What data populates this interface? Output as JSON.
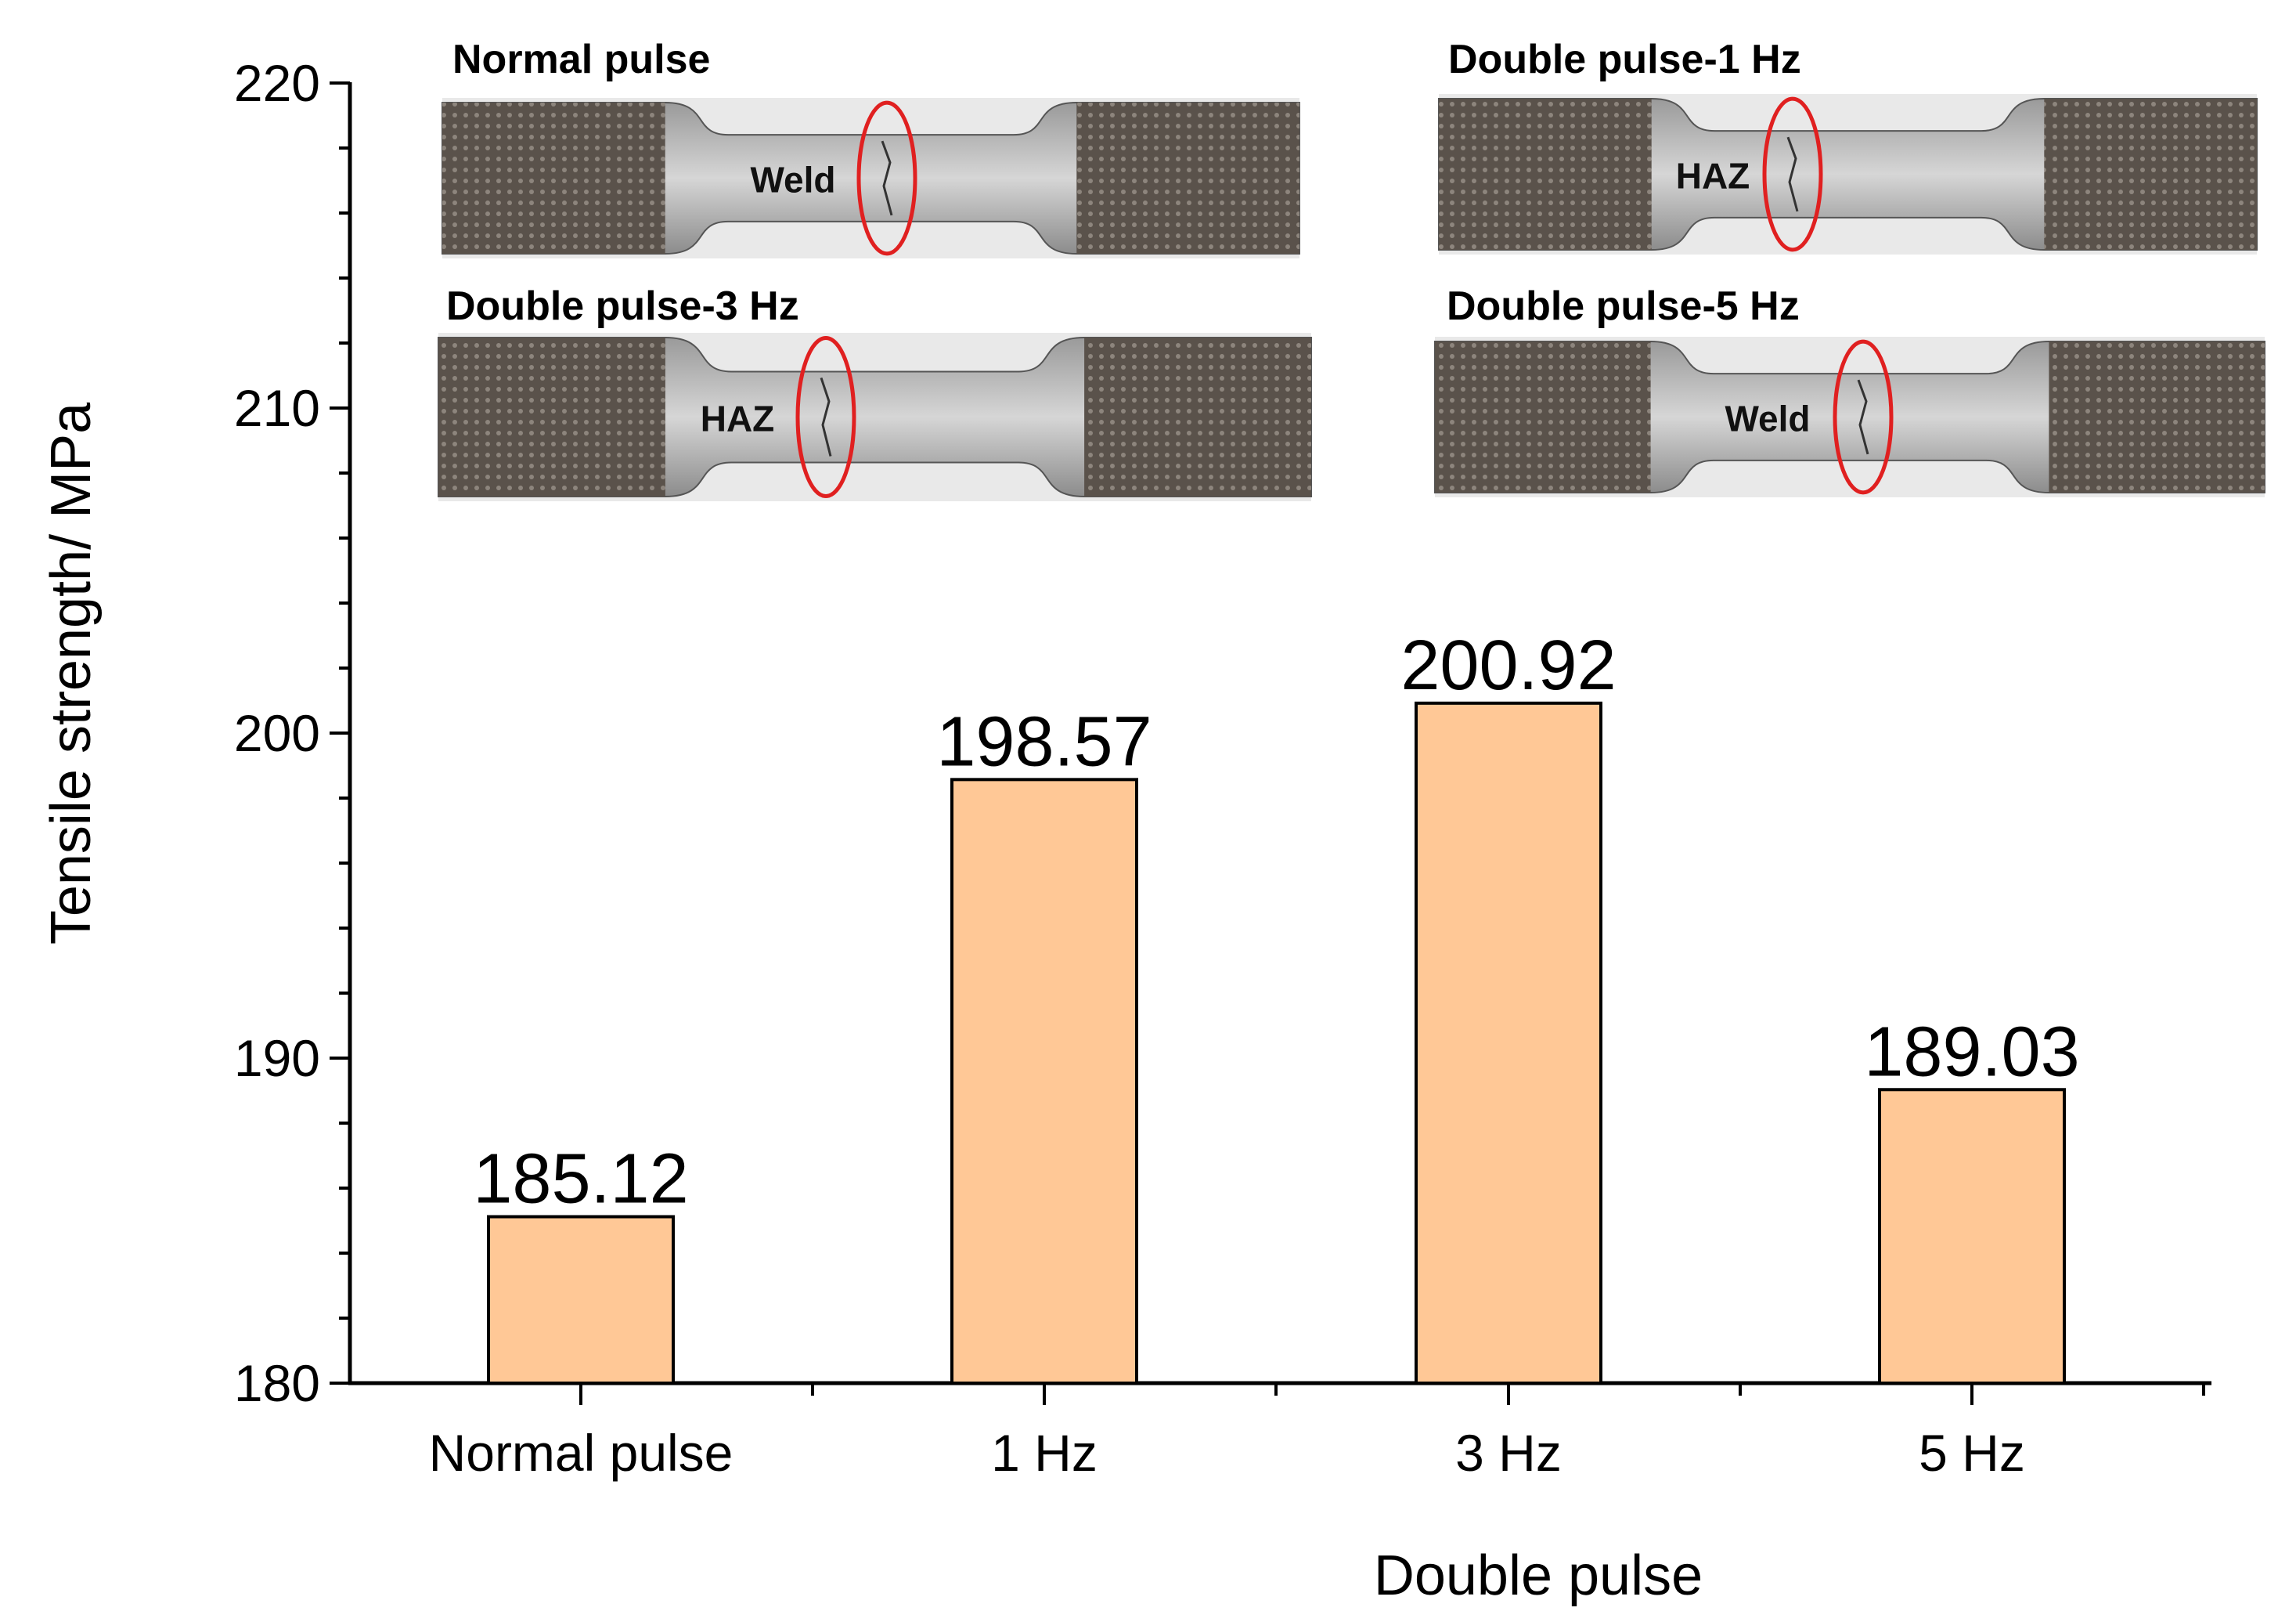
{
  "chart_data": {
    "type": "bar",
    "categories": [
      "Normal pulse",
      "1 Hz",
      "3 Hz",
      "5 Hz"
    ],
    "values": [
      185.12,
      198.57,
      200.92,
      189.03
    ],
    "data_labels": [
      "185.12",
      "198.57",
      "200.92",
      "189.03"
    ],
    "ylabel": "Tensile strength/ MPa",
    "xlabel_group": "Double pulse",
    "ylim": [
      180,
      220
    ],
    "y_ticks": [
      180,
      190,
      200,
      210,
      220
    ],
    "y_minor_step": 2,
    "grid": false,
    "bar_color": "#FFC896",
    "bar_edge_color": "#000000"
  },
  "insets": [
    {
      "title": "Normal pulse",
      "region_label": "Weld"
    },
    {
      "title": "Double pulse-1 Hz",
      "region_label": "HAZ"
    },
    {
      "title": "Double pulse-3 Hz",
      "region_label": "HAZ"
    },
    {
      "title": "Double pulse-5 Hz",
      "region_label": "Weld"
    }
  ],
  "colors": {
    "fracture_ellipse": "#E02020",
    "specimen_grip": "#4a423c",
    "specimen_gauge": "#bdbdbd"
  }
}
